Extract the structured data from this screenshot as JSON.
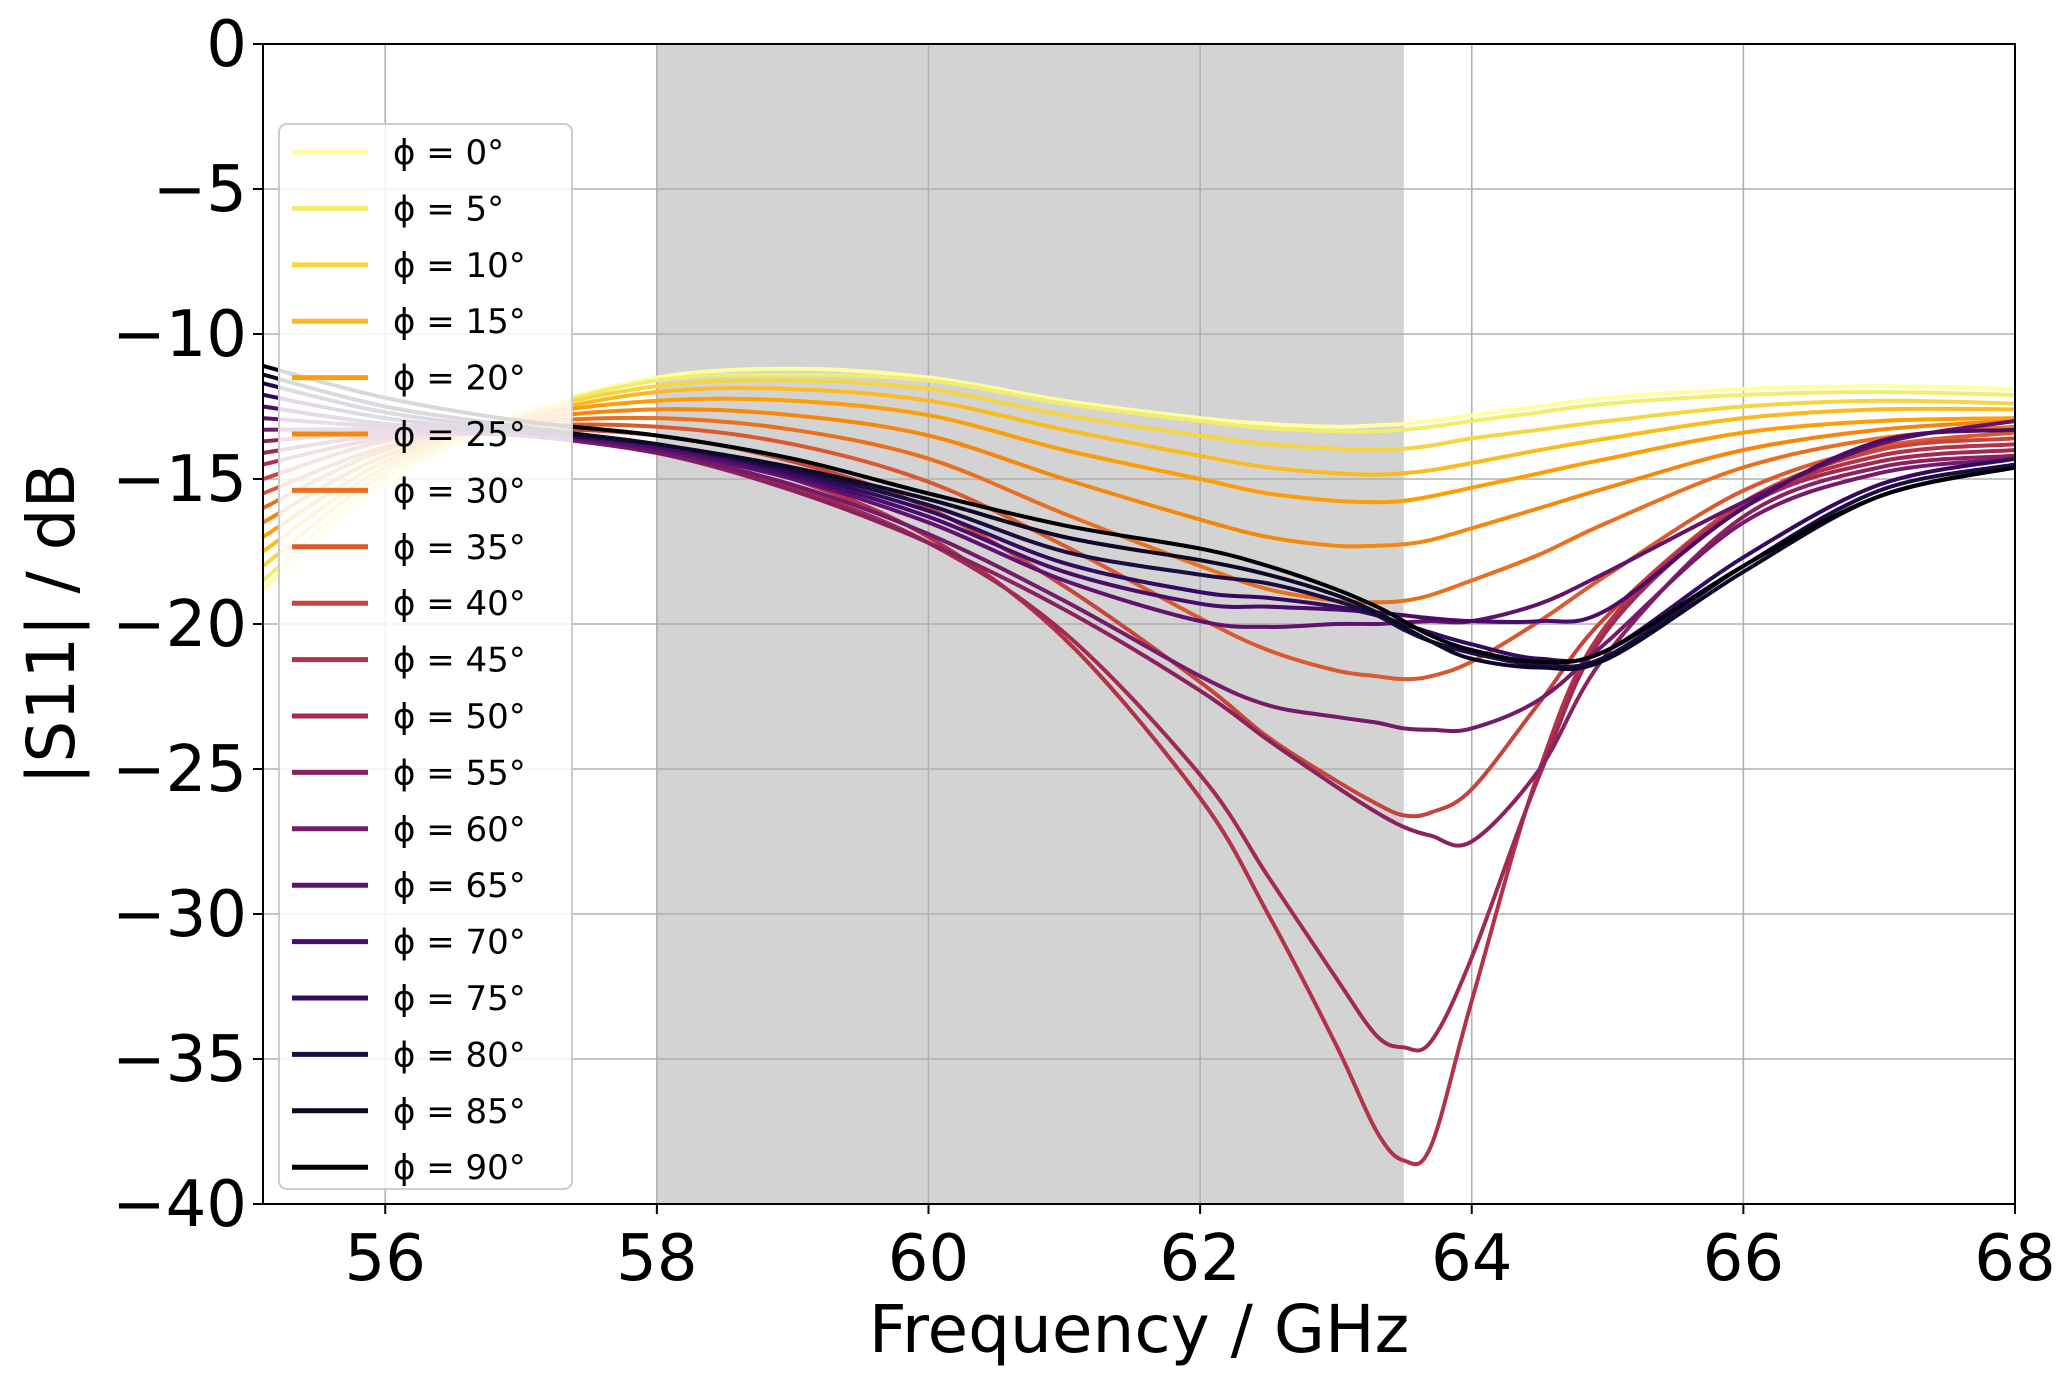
{
  "chart_data": {
    "type": "line",
    "title": "",
    "xlabel": "Frequency / GHz",
    "ylabel": "|S11| / dB",
    "xlim": [
      55.1,
      68
    ],
    "ylim": [
      -40,
      0
    ],
    "xticks": [
      56,
      58,
      60,
      62,
      64,
      66,
      68
    ],
    "yticks": [
      0,
      -5,
      -10,
      -15,
      -20,
      -25,
      -30,
      -35,
      -40
    ],
    "grid": true,
    "legend_position": "upper-left",
    "shaded_band": {
      "x_start": 58,
      "x_end": 63.5,
      "color": "#d3d3d3"
    },
    "x": [
      55.1,
      56,
      57,
      58,
      59,
      60,
      61,
      62,
      62.5,
      63,
      63.3,
      63.5,
      63.7,
      64,
      64.5,
      65,
      66,
      67,
      68
    ],
    "series": [
      {
        "name": "ϕ =   0°",
        "phi": "0°",
        "color": "#fcffa4",
        "values": [
          -18.8,
          -15.2,
          -12.8,
          -11.5,
          -11.2,
          -11.5,
          -12.3,
          -12.9,
          -13.1,
          -13.2,
          -13.15,
          -13.1,
          -13.0,
          -12.8,
          -12.5,
          -12.2,
          -11.9,
          -11.8,
          -11.9
        ]
      },
      {
        "name": "ϕ =   5°",
        "phi": "5°",
        "color": "#f1ed71",
        "values": [
          -18.5,
          -15.0,
          -12.8,
          -11.6,
          -11.4,
          -11.6,
          -12.4,
          -13.0,
          -13.25,
          -13.35,
          -13.35,
          -13.3,
          -13.2,
          -13.0,
          -12.7,
          -12.4,
          -12.1,
          -12.0,
          -12.1
        ]
      },
      {
        "name": "ϕ =  10°",
        "phi": "10°",
        "color": "#f6d543",
        "values": [
          -18.0,
          -14.8,
          -12.8,
          -11.8,
          -11.6,
          -11.9,
          -12.8,
          -13.5,
          -13.8,
          -13.95,
          -14.0,
          -13.95,
          -13.85,
          -13.6,
          -13.3,
          -13.0,
          -12.5,
          -12.3,
          -12.4
        ]
      },
      {
        "name": "ϕ =  15°",
        "phi": "15°",
        "color": "#fbba1f",
        "values": [
          -17.5,
          -14.6,
          -12.9,
          -12.0,
          -11.9,
          -12.3,
          -13.3,
          -14.2,
          -14.6,
          -14.8,
          -14.85,
          -14.8,
          -14.7,
          -14.45,
          -14.0,
          -13.6,
          -12.9,
          -12.6,
          -12.6
        ]
      },
      {
        "name": "ϕ =  20°",
        "phi": "20°",
        "color": "#fc9f07",
        "values": [
          -17.0,
          -14.4,
          -12.9,
          -12.3,
          -12.3,
          -12.8,
          -14.0,
          -15.0,
          -15.5,
          -15.75,
          -15.8,
          -15.75,
          -15.6,
          -15.3,
          -14.8,
          -14.3,
          -13.4,
          -13.0,
          -12.9
        ]
      },
      {
        "name": "ϕ =  25°",
        "phi": "25°",
        "color": "#f5870e",
        "values": [
          -16.5,
          -14.2,
          -13.0,
          -12.6,
          -12.8,
          -13.5,
          -15.0,
          -16.4,
          -17.0,
          -17.3,
          -17.3,
          -17.25,
          -17.1,
          -16.7,
          -16.0,
          -15.3,
          -14.0,
          -13.3,
          -13.0
        ]
      },
      {
        "name": "ϕ =  30°",
        "phi": "30°",
        "color": "#e9701e",
        "values": [
          -16.0,
          -14.0,
          -13.1,
          -12.9,
          -13.3,
          -14.3,
          -16.2,
          -18.0,
          -18.8,
          -19.2,
          -19.25,
          -19.2,
          -19.0,
          -18.5,
          -17.6,
          -16.5,
          -14.6,
          -13.6,
          -13.2
        ]
      },
      {
        "name": "ϕ =  35°",
        "phi": "35°",
        "color": "#d95a2e",
        "values": [
          -15.5,
          -13.9,
          -13.2,
          -13.2,
          -13.8,
          -15.1,
          -17.3,
          -19.8,
          -20.9,
          -21.6,
          -21.8,
          -21.9,
          -21.8,
          -21.3,
          -19.9,
          -18.3,
          -15.4,
          -13.9,
          -13.4
        ]
      },
      {
        "name": "ϕ =  40°",
        "phi": "40°",
        "color": "#c6443b",
        "values": [
          -15.0,
          -13.7,
          -13.3,
          -13.5,
          -14.4,
          -16.0,
          -18.7,
          -22.0,
          -23.9,
          -25.4,
          -26.2,
          -26.6,
          -26.5,
          -25.7,
          -22.7,
          -19.7,
          -15.8,
          -14.0,
          -13.6
        ]
      },
      {
        "name": "ϕ =  45°",
        "phi": "45°",
        "color": "#b2324a",
        "values": [
          -14.5,
          -13.6,
          -13.4,
          -13.8,
          -15.0,
          -17.0,
          -20.5,
          -26.0,
          -30.0,
          -34.5,
          -37.5,
          -38.5,
          -38.0,
          -33.0,
          -25.0,
          -20.0,
          -15.9,
          -14.2,
          -13.8
        ]
      },
      {
        "name": "ϕ =  50°",
        "phi": "50°",
        "color": "#a02a53",
        "values": [
          -14.1,
          -13.5,
          -13.5,
          -14.0,
          -15.3,
          -17.2,
          -20.3,
          -25.2,
          -28.7,
          -32.2,
          -34.2,
          -34.6,
          -34.4,
          -31.5,
          -25.2,
          -20.2,
          -16.0,
          -14.4,
          -14.0
        ]
      },
      {
        "name": "ϕ =  55°",
        "phi": "55°",
        "color": "#8b2260",
        "values": [
          -13.7,
          -13.4,
          -13.5,
          -14.1,
          -15.4,
          -17.2,
          -19.5,
          -22.3,
          -24.0,
          -25.6,
          -26.5,
          -27.0,
          -27.3,
          -27.5,
          -25.0,
          -21.0,
          -16.3,
          -14.6,
          -14.2
        ]
      },
      {
        "name": "ϕ =  60°",
        "phi": "60°",
        "color": "#761b69",
        "values": [
          -13.3,
          -13.3,
          -13.5,
          -14.1,
          -15.2,
          -16.9,
          -19.2,
          -21.8,
          -22.8,
          -23.2,
          -23.4,
          -23.6,
          -23.65,
          -23.6,
          -22.6,
          -20.6,
          -16.5,
          -14.8,
          -14.3
        ]
      },
      {
        "name": "ϕ =  65°",
        "phi": "65°",
        "color": "#60126e",
        "values": [
          -12.9,
          -13.2,
          -13.4,
          -14.0,
          -15.0,
          -16.5,
          -18.5,
          -19.9,
          -20.1,
          -20.0,
          -20.0,
          -19.95,
          -19.9,
          -19.9,
          -19.3,
          -18.2,
          -15.8,
          -13.8,
          -13.0
        ]
      },
      {
        "name": "ϕ =  70°",
        "phi": "70°",
        "color": "#4a0c6b",
        "values": [
          -12.5,
          -13.1,
          -13.4,
          -13.9,
          -14.9,
          -16.3,
          -18.2,
          -19.3,
          -19.4,
          -19.5,
          -19.6,
          -19.7,
          -19.8,
          -19.9,
          -19.9,
          -19.5,
          -16.0,
          -13.7,
          -13.3
        ]
      },
      {
        "name": "ϕ =  75°",
        "phi": "75°",
        "color": "#330a5f",
        "values": [
          -12.1,
          -12.9,
          -13.4,
          -13.8,
          -14.8,
          -16.1,
          -17.9,
          -18.9,
          -19.1,
          -19.4,
          -19.7,
          -20.0,
          -20.3,
          -20.7,
          -21.2,
          -20.9,
          -17.7,
          -15.2,
          -14.3
        ]
      },
      {
        "name": "ϕ =  80°",
        "phi": "80°",
        "color": "#1b0c41",
        "values": [
          -11.7,
          -12.7,
          -13.3,
          -13.8,
          -14.7,
          -15.9,
          -17.5,
          -18.3,
          -18.6,
          -19.2,
          -19.7,
          -20.2,
          -20.6,
          -21.0,
          -21.4,
          -21.1,
          -18.0,
          -15.4,
          -14.5
        ]
      },
      {
        "name": "ϕ =  85°",
        "phi": "85°",
        "color": "#0c0826",
        "values": [
          -11.4,
          -12.5,
          -13.2,
          -13.8,
          -14.6,
          -15.7,
          -17.0,
          -17.8,
          -18.3,
          -19.0,
          -19.6,
          -20.1,
          -20.6,
          -21.2,
          -21.5,
          -21.2,
          -18.2,
          -15.6,
          -14.6
        ]
      },
      {
        "name": "ϕ =  90°",
        "phi": "90°",
        "color": "#000004",
        "values": [
          -11.1,
          -12.2,
          -13.0,
          -13.5,
          -14.3,
          -15.5,
          -16.6,
          -17.4,
          -18.0,
          -18.8,
          -19.4,
          -19.9,
          -20.4,
          -20.9,
          -21.3,
          -20.9,
          -18.0,
          -15.6,
          -14.6
        ]
      }
    ]
  }
}
